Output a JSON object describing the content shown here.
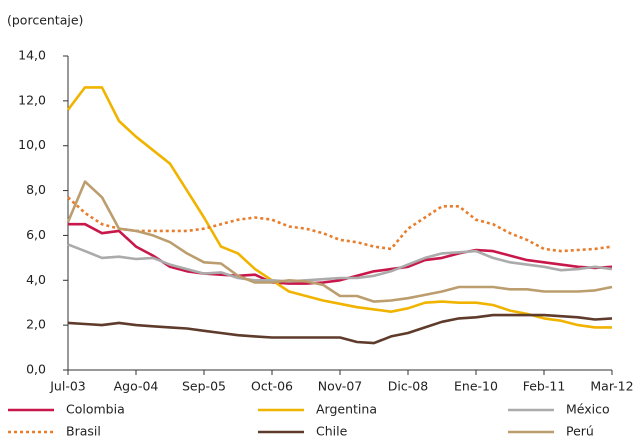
{
  "chart_data": {
    "type": "line",
    "ylabel": "(porcentaje)",
    "categories": [
      "Jul-03",
      null,
      null,
      null,
      "Ago-04",
      null,
      null,
      null,
      "Sep-05",
      null,
      null,
      null,
      "Oct-06",
      null,
      null,
      null,
      "Nov-07",
      null,
      null,
      null,
      "Dic-08",
      null,
      null,
      null,
      "Ene-10",
      null,
      null,
      null,
      "Feb-11",
      null,
      null,
      null,
      "Mar-12"
    ],
    "ylim": [
      0,
      14
    ],
    "yticks": [
      {
        "value": 0,
        "label": "0,0"
      },
      {
        "value": 2,
        "label": "2,0"
      },
      {
        "value": 4,
        "label": "4,0"
      },
      {
        "value": 6,
        "label": "6,0"
      },
      {
        "value": 8,
        "label": "8,0"
      },
      {
        "value": 10,
        "label": "10,0"
      },
      {
        "value": 12,
        "label": "12,0"
      },
      {
        "value": 14,
        "label": "14,0"
      }
    ],
    "grid": false,
    "legend": "bottom",
    "series": [
      {
        "name": "Colombia",
        "color": "#c8174a",
        "style": "solid",
        "values": [
          6.5,
          6.5,
          6.1,
          6.2,
          5.5,
          5.1,
          4.6,
          4.4,
          4.3,
          4.25,
          4.2,
          4.25,
          3.9,
          3.85,
          3.85,
          3.9,
          4.0,
          4.2,
          4.4,
          4.5,
          4.6,
          4.9,
          5.0,
          5.2,
          5.35,
          5.3,
          5.1,
          4.9,
          4.8,
          4.7,
          4.6,
          4.55,
          4.6
        ]
      },
      {
        "name": "Argentina",
        "color": "#f0b400",
        "style": "solid",
        "values": [
          11.6,
          12.6,
          12.6,
          11.1,
          10.4,
          9.8,
          9.2,
          8.0,
          6.8,
          5.5,
          5.2,
          4.5,
          4.0,
          3.5,
          3.3,
          3.1,
          2.95,
          2.8,
          2.7,
          2.6,
          2.75,
          3.0,
          3.05,
          3.0,
          3.0,
          2.9,
          2.65,
          2.5,
          2.3,
          2.2,
          2.0,
          1.9,
          1.9
        ]
      },
      {
        "name": "México",
        "color": "#ababab",
        "style": "solid",
        "values": [
          5.6,
          5.3,
          5.0,
          5.05,
          4.95,
          5.0,
          4.7,
          4.5,
          4.3,
          4.35,
          4.1,
          4.0,
          4.0,
          3.95,
          4.0,
          4.05,
          4.1,
          4.1,
          4.2,
          4.4,
          4.7,
          5.0,
          5.2,
          5.25,
          5.3,
          5.0,
          4.8,
          4.7,
          4.6,
          4.45,
          4.5,
          4.6,
          4.5
        ]
      },
      {
        "name": "Brasil",
        "color": "#e87d2c",
        "style": "dotted",
        "values": [
          7.7,
          7.0,
          6.5,
          6.3,
          6.2,
          6.2,
          6.2,
          6.2,
          6.3,
          6.5,
          6.7,
          6.8,
          6.7,
          6.4,
          6.3,
          6.1,
          5.8,
          5.7,
          5.5,
          5.4,
          6.3,
          6.8,
          7.3,
          7.3,
          6.7,
          6.5,
          6.1,
          5.8,
          5.4,
          5.3,
          5.35,
          5.4,
          5.5
        ]
      },
      {
        "name": "Chile",
        "color": "#5e3b2b",
        "style": "solid",
        "values": [
          2.1,
          2.05,
          2.0,
          2.1,
          2.0,
          1.95,
          1.9,
          1.85,
          1.75,
          1.65,
          1.55,
          1.5,
          1.45,
          1.45,
          1.45,
          1.45,
          1.45,
          1.25,
          1.2,
          1.5,
          1.65,
          1.9,
          2.15,
          2.3,
          2.35,
          2.45,
          2.45,
          2.45,
          2.45,
          2.4,
          2.35,
          2.25,
          2.3
        ]
      },
      {
        "name": "Perú",
        "color": "#bb9d6e",
        "style": "solid",
        "values": [
          6.6,
          8.4,
          7.7,
          6.3,
          6.2,
          6.0,
          5.7,
          5.2,
          4.8,
          4.75,
          4.2,
          3.9,
          3.9,
          4.0,
          3.95,
          3.8,
          3.3,
          3.3,
          3.05,
          3.1,
          3.2,
          3.35,
          3.5,
          3.7,
          3.7,
          3.7,
          3.6,
          3.6,
          3.5,
          3.5,
          3.5,
          3.55,
          3.7
        ]
      }
    ]
  }
}
